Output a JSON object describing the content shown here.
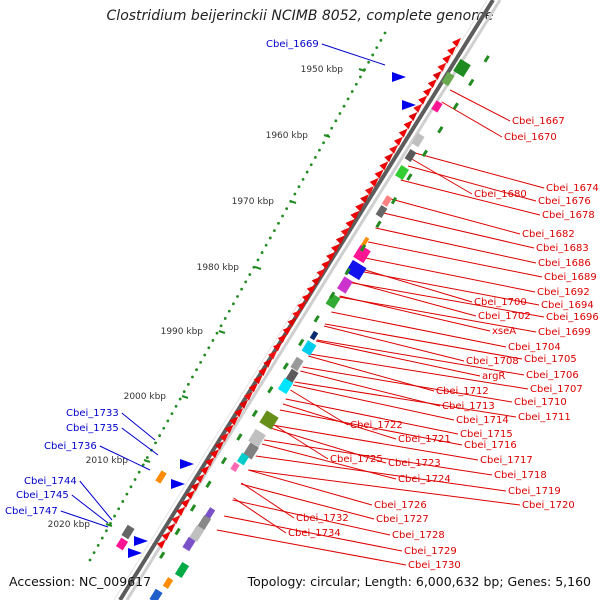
{
  "title": "Clostridium beijerinckii NCIMB 8052, complete genome",
  "footer": {
    "accession": "Accession: NC_009617",
    "topology": "Topology: circular; Length: 6,000,632 bp; Genes: 5,160"
  },
  "colors": {
    "forward_label": "#0000cc",
    "reverse_label": "#dd0000",
    "backbone": "#777777",
    "tick": "#228b22"
  },
  "scale_ticks": [
    "1950 kbp",
    "1960 kbp",
    "1970 kbp",
    "1980 kbp",
    "1990 kbp",
    "2000 kbp",
    "2010 kbp",
    "2020 kbp"
  ],
  "forward_genes": [
    "Cbei_1669",
    "Cbei_1733",
    "Cbei_1735",
    "Cbei_1736",
    "Cbei_1744",
    "Cbei_1745",
    "Cbei_1747"
  ],
  "reverse_genes": [
    "Cbei_1667",
    "Cbei_1670",
    "Cbei_1674",
    "Cbei_1676",
    "Cbei_1678",
    "Cbei_1680",
    "Cbei_1682",
    "Cbei_1683",
    "Cbei_1686",
    "Cbei_1689",
    "Cbei_1692",
    "Cbei_1694",
    "Cbei_1696",
    "Cbei_1700",
    "Cbei_1702",
    "Cbei_1699",
    "xseA",
    "Cbei_1704",
    "Cbei_1705",
    "Cbei_1708",
    "argR",
    "Cbei_1706",
    "Cbei_1707",
    "Cbei_1712",
    "Cbei_1710",
    "Cbei_1713",
    "Cbei_1711",
    "Cbei_1714",
    "Cbei_1715",
    "Cbei_1722",
    "Cbei_1721",
    "Cbei_1716",
    "Cbei_1717",
    "Cbei_1725",
    "Cbei_1723",
    "Cbei_1718",
    "Cbei_1724",
    "Cbei_1719",
    "Cbei_1720",
    "Cbei_1726",
    "Cbei_1727",
    "Cbei_1732",
    "Cbei_1728",
    "Cbei_1734",
    "Cbei_1729",
    "Cbei_1730"
  ]
}
